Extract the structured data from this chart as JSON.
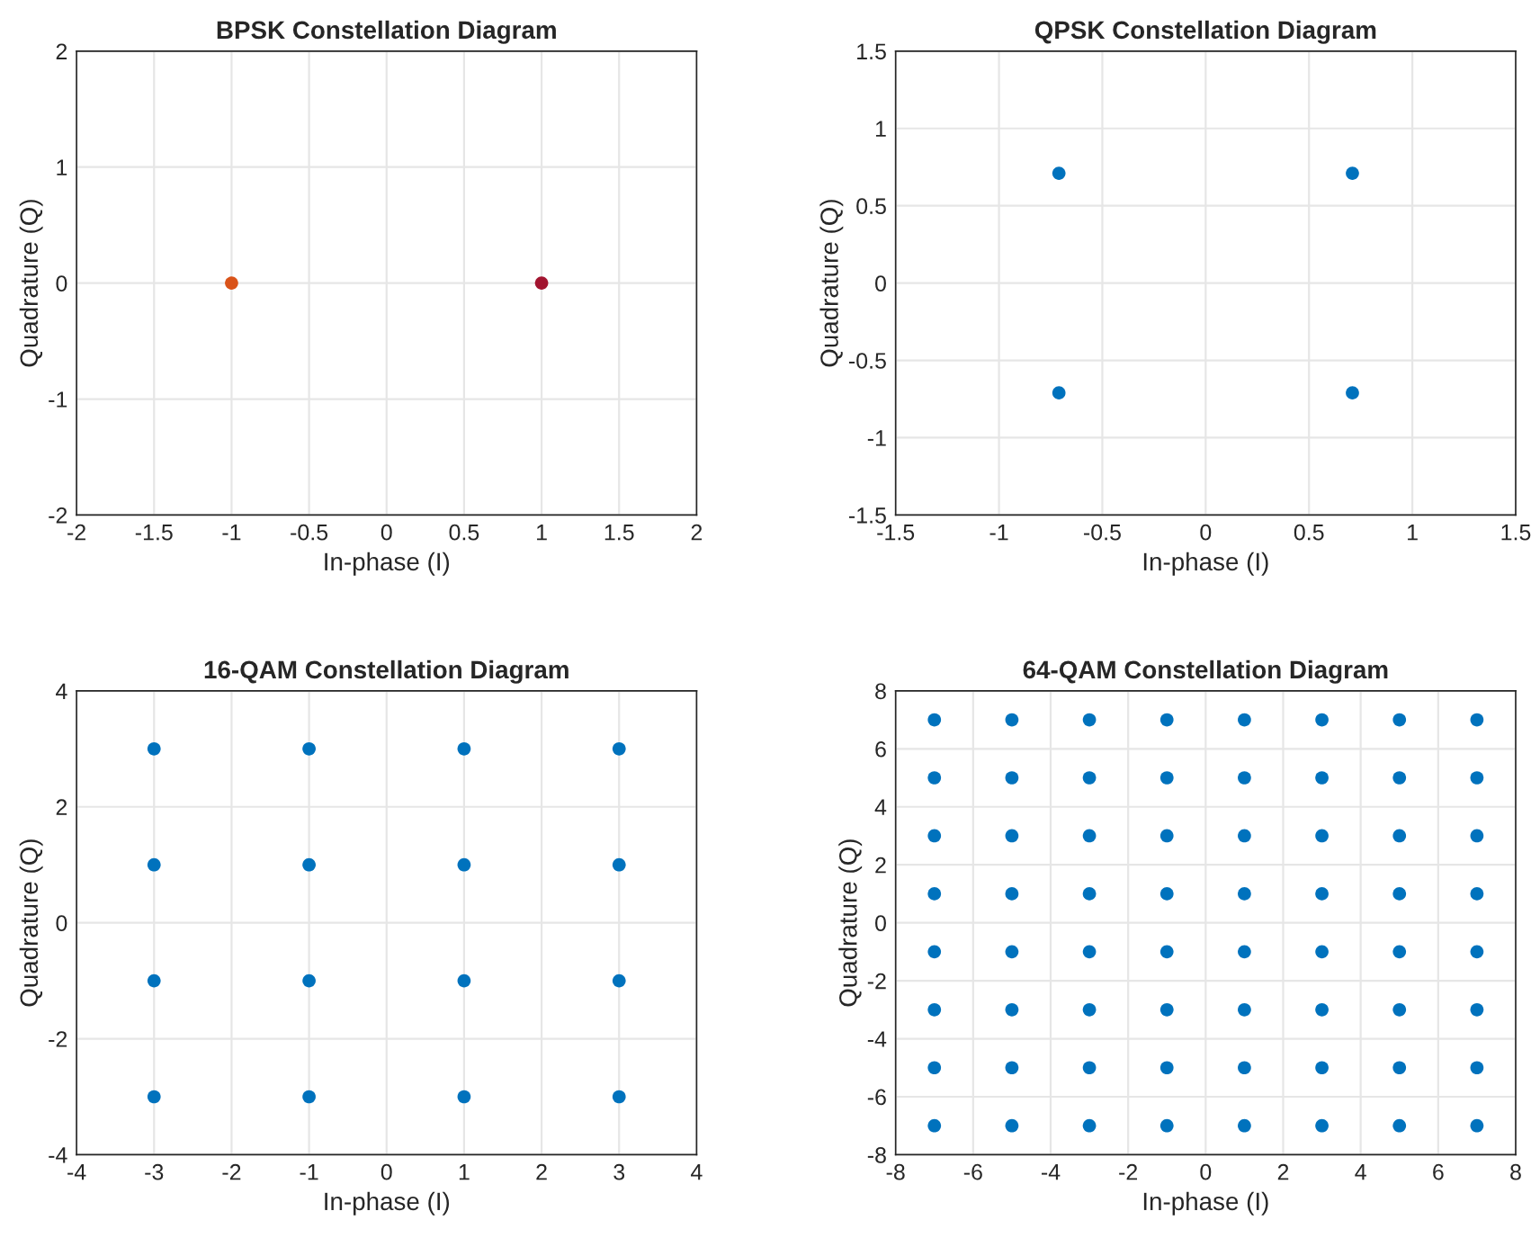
{
  "chart_data": [
    {
      "type": "scatter",
      "title": "BPSK Constellation Diagram",
      "xlabel": "In-phase (I)",
      "ylabel": "Quadrature (Q)",
      "x": [
        -1,
        1
      ],
      "values": [
        0,
        0
      ],
      "colors": [
        "#d95319",
        "#a2142f"
      ],
      "xlim": [
        -2,
        2
      ],
      "ylim": [
        -2,
        2
      ],
      "xticks": [
        -2,
        -1.5,
        -1,
        -0.5,
        0,
        0.5,
        1,
        1.5,
        2
      ],
      "yticks": [
        -2,
        -1,
        0,
        1,
        2
      ],
      "grid": true,
      "marker": "circle"
    },
    {
      "type": "scatter",
      "title": "QPSK Constellation Diagram",
      "xlabel": "In-phase (I)",
      "ylabel": "Quadrature (Q)",
      "x": [
        -0.71,
        0.71,
        -0.71,
        0.71
      ],
      "values": [
        0.71,
        0.71,
        -0.71,
        -0.71
      ],
      "color": "#0072bd",
      "xlim": [
        -1.5,
        1.5
      ],
      "ylim": [
        -1.5,
        1.5
      ],
      "xticks": [
        -1.5,
        -1,
        -0.5,
        0,
        0.5,
        1,
        1.5
      ],
      "yticks": [
        -1.5,
        -1,
        -0.5,
        0,
        0.5,
        1,
        1.5
      ],
      "grid": true,
      "marker": "circle"
    },
    {
      "type": "scatter",
      "title": "16-QAM Constellation Diagram",
      "xlabel": "In-phase (I)",
      "ylabel": "Quadrature (Q)",
      "x": [
        -3,
        -1,
        1,
        3,
        -3,
        -1,
        1,
        3,
        -3,
        -1,
        1,
        3,
        -3,
        -1,
        1,
        3
      ],
      "values": [
        3,
        3,
        3,
        3,
        1,
        1,
        1,
        1,
        -1,
        -1,
        -1,
        -1,
        -3,
        -3,
        -3,
        -3
      ],
      "color": "#0072bd",
      "xlim": [
        -4,
        4
      ],
      "ylim": [
        -4,
        4
      ],
      "xticks": [
        -4,
        -3,
        -2,
        -1,
        0,
        1,
        2,
        3,
        4
      ],
      "yticks": [
        -4,
        -2,
        0,
        2,
        4
      ],
      "grid": true,
      "marker": "circle"
    },
    {
      "type": "scatter",
      "title": "64-QAM Constellation Diagram",
      "xlabel": "In-phase (I)",
      "ylabel": "Quadrature (Q)",
      "x": [
        -7,
        -5,
        -3,
        -1,
        1,
        3,
        5,
        7,
        -7,
        -5,
        -3,
        -1,
        1,
        3,
        5,
        7,
        -7,
        -5,
        -3,
        -1,
        1,
        3,
        5,
        7,
        -7,
        -5,
        -3,
        -1,
        1,
        3,
        5,
        7,
        -7,
        -5,
        -3,
        -1,
        1,
        3,
        5,
        7,
        -7,
        -5,
        -3,
        -1,
        1,
        3,
        5,
        7,
        -7,
        -5,
        -3,
        -1,
        1,
        3,
        5,
        7,
        -7,
        -5,
        -3,
        -1,
        1,
        3,
        5,
        7
      ],
      "values": [
        7,
        7,
        7,
        7,
        7,
        7,
        7,
        7,
        5,
        5,
        5,
        5,
        5,
        5,
        5,
        5,
        3,
        3,
        3,
        3,
        3,
        3,
        3,
        3,
        1,
        1,
        1,
        1,
        1,
        1,
        1,
        1,
        -1,
        -1,
        -1,
        -1,
        -1,
        -1,
        -1,
        -1,
        -3,
        -3,
        -3,
        -3,
        -3,
        -3,
        -3,
        -3,
        -5,
        -5,
        -5,
        -5,
        -5,
        -5,
        -5,
        -5,
        -7,
        -7,
        -7,
        -7,
        -7,
        -7,
        -7,
        -7
      ],
      "color": "#0072bd",
      "xlim": [
        -8,
        8
      ],
      "ylim": [
        -8,
        8
      ],
      "xticks": [
        -8,
        -6,
        -4,
        -2,
        0,
        2,
        4,
        6,
        8
      ],
      "yticks": [
        -8,
        -6,
        -4,
        -2,
        0,
        2,
        4,
        6,
        8
      ],
      "grid": true,
      "marker": "circle"
    }
  ]
}
